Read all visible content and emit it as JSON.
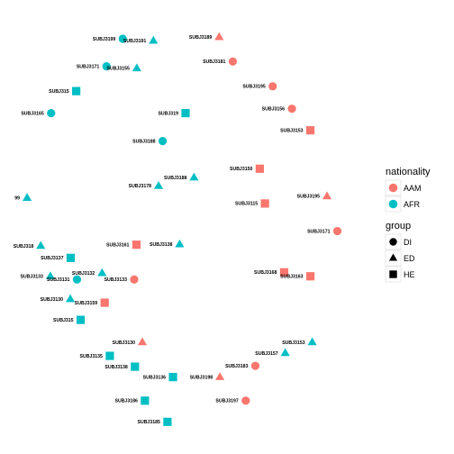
{
  "chart_data": {
    "type": "scatter",
    "title": "",
    "xlabel": "",
    "ylabel": "",
    "grid": false,
    "axes_visible": false,
    "legend_position": "right",
    "legends": [
      {
        "title": "nationality",
        "aesthetic": "color",
        "entries": [
          {
            "label": "AAM",
            "color": "#F8766D"
          },
          {
            "label": "AFR",
            "color": "#00BFC4"
          }
        ]
      },
      {
        "title": "group",
        "aesthetic": "shape",
        "entries": [
          {
            "label": "DI",
            "shape": "circle"
          },
          {
            "label": "ED",
            "shape": "triangle"
          },
          {
            "label": "HE",
            "shape": "square"
          }
        ]
      }
    ],
    "xlim": [
      0,
      100
    ],
    "ylim": [
      0,
      100
    ],
    "points": [
      {
        "label": "SUBJ3199",
        "x": 30.8,
        "y": 96.4,
        "nationality": "AFR",
        "group": "DI"
      },
      {
        "label": "SUBJ3191",
        "x": 39.1,
        "y": 95.9,
        "nationality": "AFR",
        "group": "ED"
      },
      {
        "label": "SUBJ3189",
        "x": 56.9,
        "y": 96.8,
        "nationality": "AAM",
        "group": "ED"
      },
      {
        "label": "SUBJ3181",
        "x": 60.6,
        "y": 90.7,
        "nationality": "AAM",
        "group": "DI"
      },
      {
        "label": "SUBJ3171",
        "x": 26.4,
        "y": 89.5,
        "nationality": "AFR",
        "group": "DI"
      },
      {
        "label": "SUBJ3155",
        "x": 34.6,
        "y": 89.0,
        "nationality": "AFR",
        "group": "ED"
      },
      {
        "label": "SUBJ3195",
        "x": 71.4,
        "y": 84.5,
        "nationality": "AAM",
        "group": "DI"
      },
      {
        "label": "SUBJ315",
        "x": 18.2,
        "y": 83.3,
        "nationality": "AFR",
        "group": "HE"
      },
      {
        "label": "SUBJ3156",
        "x": 76.6,
        "y": 78.9,
        "nationality": "AAM",
        "group": "DI"
      },
      {
        "label": "SUBJ319",
        "x": 47.8,
        "y": 77.8,
        "nationality": "AFR",
        "group": "HE"
      },
      {
        "label": "SUBJ3165",
        "x": 11.4,
        "y": 77.8,
        "nationality": "AFR",
        "group": "DI"
      },
      {
        "label": "SUBJ3153",
        "x": 81.6,
        "y": 73.5,
        "nationality": "AAM",
        "group": "HE"
      },
      {
        "label": "SUBJ3188",
        "x": 41.6,
        "y": 70.8,
        "nationality": "AFR",
        "group": "DI"
      },
      {
        "label": "SUBJ3150",
        "x": 67.9,
        "y": 63.9,
        "nationality": "AAM",
        "group": "HE"
      },
      {
        "label": "SUBJ3188",
        "x": 50.1,
        "y": 61.7,
        "nationality": "AFR",
        "group": "ED"
      },
      {
        "label": "SUBJ3178",
        "x": 40.5,
        "y": 59.6,
        "nationality": "AFR",
        "group": "ED"
      },
      {
        "label": "SUBJ3195",
        "x": 86.1,
        "y": 57.0,
        "nationality": "AAM",
        "group": "ED"
      },
      {
        "label": "99",
        "x": 4.9,
        "y": 56.6,
        "nationality": "AFR",
        "group": "ED"
      },
      {
        "label": "SUBJ3115",
        "x": 69.3,
        "y": 55.2,
        "nationality": "AAM",
        "group": "HE"
      },
      {
        "label": "SUBJ3171",
        "x": 88.9,
        "y": 48.3,
        "nationality": "AAM",
        "group": "DI"
      },
      {
        "label": "SUBJ3161",
        "x": 34.5,
        "y": 44.9,
        "nationality": "AAM",
        "group": "HE"
      },
      {
        "label": "SUBJ3138",
        "x": 46.2,
        "y": 45.0,
        "nationality": "AFR",
        "group": "ED"
      },
      {
        "label": "SUBJ318",
        "x": 8.6,
        "y": 44.6,
        "nationality": "AFR",
        "group": "ED"
      },
      {
        "label": "SUBJ3137",
        "x": 16.7,
        "y": 41.6,
        "nationality": "AFR",
        "group": "HE"
      },
      {
        "label": "SUBJ3168",
        "x": 74.5,
        "y": 38.0,
        "nationality": "AAM",
        "group": "HE"
      },
      {
        "label": "SUBJ3163",
        "x": 81.6,
        "y": 37.0,
        "nationality": "AAM",
        "group": "HE"
      },
      {
        "label": "SUBJ3132",
        "x": 25.2,
        "y": 37.8,
        "nationality": "AFR",
        "group": "ED"
      },
      {
        "label": "SUBJ3133",
        "x": 11.2,
        "y": 37.0,
        "nationality": "AFR",
        "group": "ED"
      },
      {
        "label": "SUBJ3131",
        "x": 18.4,
        "y": 36.2,
        "nationality": "AFR",
        "group": "DI"
      },
      {
        "label": "SUBJ3133",
        "x": 33.9,
        "y": 36.2,
        "nationality": "AAM",
        "group": "DI"
      },
      {
        "label": "SUBJ3130",
        "x": 16.6,
        "y": 31.3,
        "nationality": "AFR",
        "group": "ED"
      },
      {
        "label": "SUBJ3159",
        "x": 25.9,
        "y": 30.4,
        "nationality": "AAM",
        "group": "HE"
      },
      {
        "label": "SUBJ315",
        "x": 19.4,
        "y": 26.1,
        "nationality": "AFR",
        "group": "HE"
      },
      {
        "label": "SUBJ3130",
        "x": 36.1,
        "y": 20.5,
        "nationality": "AAM",
        "group": "ED"
      },
      {
        "label": "SUBJ3153",
        "x": 82.1,
        "y": 20.5,
        "nationality": "AFR",
        "group": "ED"
      },
      {
        "label": "SUBJ3157",
        "x": 74.8,
        "y": 17.8,
        "nationality": "AFR",
        "group": "ED"
      },
      {
        "label": "SUBJ3135",
        "x": 27.3,
        "y": 17.1,
        "nationality": "AFR",
        "group": "HE"
      },
      {
        "label": "SUBJ3183",
        "x": 66.7,
        "y": 14.6,
        "nationality": "AAM",
        "group": "DI"
      },
      {
        "label": "SUBJ3138",
        "x": 34.1,
        "y": 14.4,
        "nationality": "AFR",
        "group": "HE"
      },
      {
        "label": "SUBJ3136",
        "x": 44.4,
        "y": 11.8,
        "nationality": "AFR",
        "group": "HE"
      },
      {
        "label": "SUBJ3198",
        "x": 57.1,
        "y": 11.8,
        "nationality": "AAM",
        "group": "ED"
      },
      {
        "label": "SUBJ3197",
        "x": 64.1,
        "y": 5.9,
        "nationality": "AAM",
        "group": "DI"
      },
      {
        "label": "SUBJ3186",
        "x": 36.8,
        "y": 5.9,
        "nationality": "AFR",
        "group": "HE"
      },
      {
        "label": "SUBJ3185",
        "x": 42.9,
        "y": 0.6,
        "nationality": "AFR",
        "group": "HE"
      }
    ]
  }
}
